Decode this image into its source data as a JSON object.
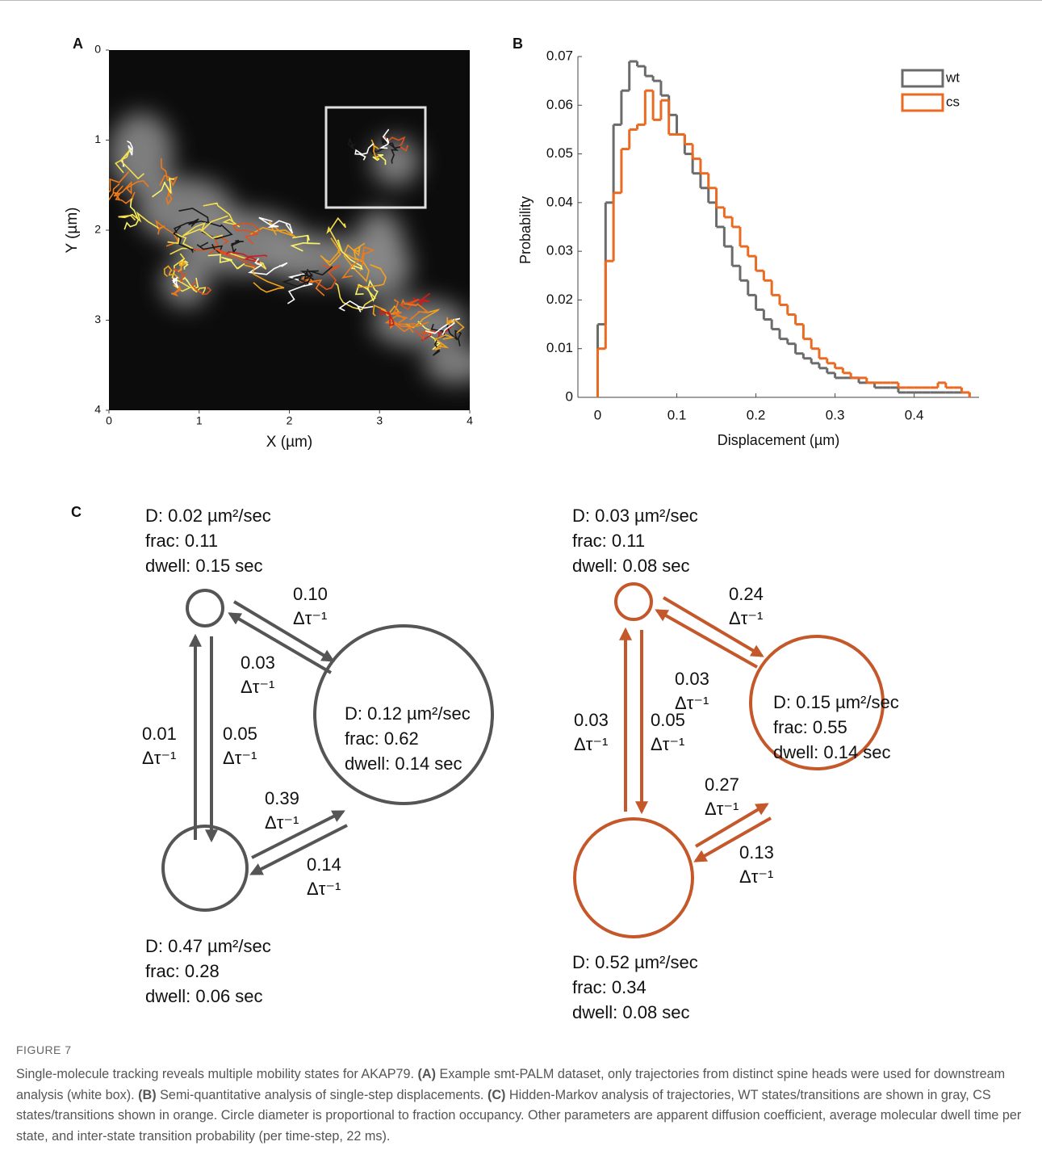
{
  "panel_labels": [
    "A",
    "B",
    "C"
  ],
  "chart_data": [
    {
      "type": "image",
      "xlabel": "X (µm)",
      "ylabel": "Y (µm)",
      "xlim": [
        0,
        4
      ],
      "ylim": [
        0,
        4
      ],
      "yreverse": true,
      "xticks": [
        0,
        1,
        2,
        3,
        4
      ],
      "yticks": [
        0,
        1,
        2,
        3,
        4
      ]
    },
    {
      "type": "histogram",
      "xlabel": "Displacement (µm)",
      "ylabel": "Probability",
      "bins": [
        0,
        0.01,
        0.02,
        0.03,
        0.04,
        0.05,
        0.06,
        0.07,
        0.08,
        0.09,
        0.1,
        0.11,
        0.12,
        0.13,
        0.14,
        0.15,
        0.16,
        0.17,
        0.18,
        0.19,
        0.2,
        0.21,
        0.22,
        0.23,
        0.24,
        0.25,
        0.26,
        0.27,
        0.28,
        0.29,
        0.3,
        0.31,
        0.32,
        0.33,
        0.34,
        0.35,
        0.36,
        0.37,
        0.38,
        0.39,
        0.4,
        0.41,
        0.42,
        0.43,
        0.44,
        0.45,
        0.46,
        0.47
      ],
      "series": [
        {
          "name": "wt",
          "color": "#6b6b6b",
          "values": [
            0.015,
            0.04,
            0.056,
            0.063,
            0.069,
            0.068,
            0.066,
            0.065,
            0.062,
            0.058,
            0.054,
            0.05,
            0.046,
            0.043,
            0.04,
            0.035,
            0.031,
            0.027,
            0.024,
            0.021,
            0.018,
            0.016,
            0.014,
            0.012,
            0.011,
            0.009,
            0.008,
            0.007,
            0.006,
            0.005,
            0.004,
            0.004,
            0.004,
            0.003,
            0.003,
            0.002,
            0.002,
            0.002,
            0.001,
            0.001,
            0.001,
            0.001,
            0.001,
            0.001,
            0.001,
            0.001,
            0.001
          ]
        },
        {
          "name": "cs",
          "color": "#ea6a22",
          "values": [
            0.01,
            0.028,
            0.042,
            0.051,
            0.055,
            0.056,
            0.063,
            0.057,
            0.061,
            0.054,
            0.054,
            0.052,
            0.049,
            0.046,
            0.043,
            0.039,
            0.037,
            0.035,
            0.031,
            0.029,
            0.026,
            0.024,
            0.021,
            0.019,
            0.017,
            0.015,
            0.012,
            0.01,
            0.008,
            0.007,
            0.006,
            0.005,
            0.004,
            0.004,
            0.003,
            0.003,
            0.003,
            0.003,
            0.002,
            0.002,
            0.002,
            0.002,
            0.002,
            0.003,
            0.002,
            0.002,
            0.001
          ]
        }
      ],
      "xlim": [
        -0.025,
        0.482
      ],
      "ylim": [
        0,
        0.07
      ],
      "xticks": [
        0,
        0.1,
        0.2,
        0.3,
        0.4
      ],
      "yticks": [
        0,
        0.01,
        0.02,
        0.03,
        0.04,
        0.05,
        0.06,
        0.07
      ],
      "legend": "top-right"
    }
  ],
  "diagram": {
    "rate_unit": "Δτ⁻¹",
    "groups": [
      {
        "color": "#555555",
        "nodes": [
          {
            "lines": [
              "D: 0.02 µm²/sec",
              "frac: 0.11",
              "dwell: 0.15 sec"
            ]
          },
          {
            "lines": [
              "D: 0.12 µm²/sec",
              "frac: 0.62",
              "dwell: 0.14 sec"
            ]
          },
          {
            "lines": [
              "D: 0.47 µm²/sec",
              "frac: 0.28",
              "dwell: 0.06 sec"
            ]
          }
        ],
        "edges": [
          "0.10",
          "0.03",
          "0.01",
          "0.05",
          "0.39",
          "0.14"
        ]
      },
      {
        "color": "#c4582a",
        "nodes": [
          {
            "lines": [
              "D: 0.03 µm²/sec",
              "frac: 0.11",
              "dwell: 0.08 sec"
            ]
          },
          {
            "lines": [
              "D: 0.15 µm²/sec",
              "frac: 0.55",
              "dwell: 0.14 sec"
            ]
          },
          {
            "lines": [
              "D: 0.52 µm²/sec",
              "frac: 0.34",
              "dwell: 0.08 sec"
            ]
          }
        ],
        "edges": [
          "0.24",
          "0.03",
          "0.03",
          "0.05",
          "0.27",
          "0.13"
        ]
      }
    ]
  },
  "caption": {
    "label": "FIGURE 7",
    "segments": [
      {
        "text": "Single-molecule tracking reveals multiple mobility states for AKAP79. ",
        "bold": false
      },
      {
        "text": "(A)",
        "bold": true
      },
      {
        "text": " Example smt-PALM dataset, only trajectories from distinct spine heads were used for downstream analysis (white box). ",
        "bold": false
      },
      {
        "text": "(B)",
        "bold": true
      },
      {
        "text": " Semi-quantitative analysis of single-step displacements. ",
        "bold": false
      },
      {
        "text": "(C)",
        "bold": true
      },
      {
        "text": " Hidden-Markov analysis of trajectories, WT states/transitions are shown in gray, CS states/transitions shown in orange. Circle diameter is proportional to fraction occupancy. Other parameters are apparent diffusion coefficient, average molecular dwell time per state, and inter-state transition probability (per time-step, 22 ms).",
        "bold": false
      }
    ]
  }
}
